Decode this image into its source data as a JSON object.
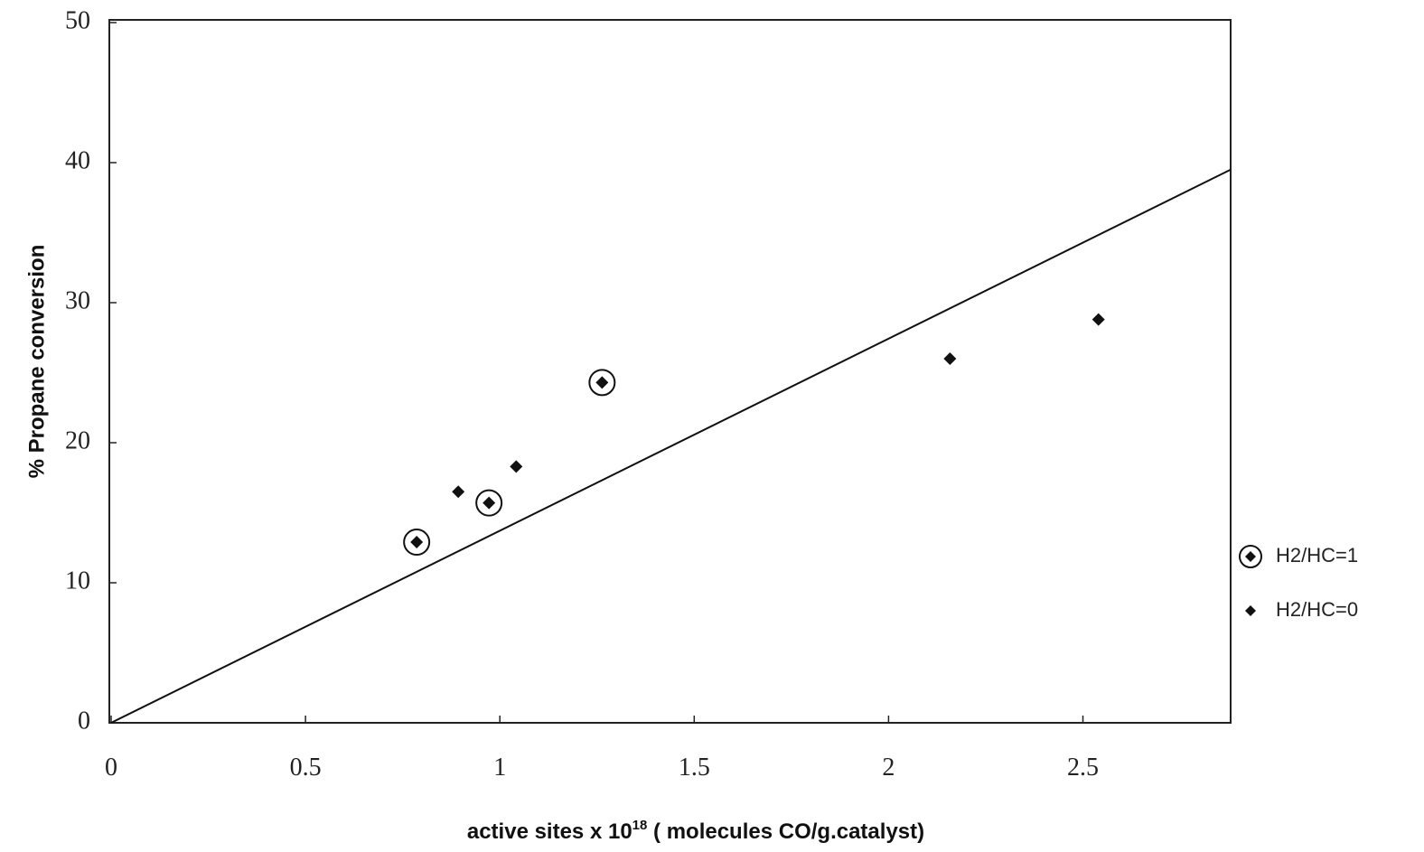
{
  "chart_data": {
    "type": "scatter",
    "ylabel": "% Propane conversion",
    "xlabel": {
      "text": "active sites x 10",
      "sup": "18",
      "rest": " ( molecules CO/g.catalyst)"
    },
    "xlim": [
      0,
      2.88
    ],
    "ylim": [
      0,
      50
    ],
    "xticks": [
      0,
      0.5,
      1,
      1.5,
      2,
      2.5
    ],
    "yticks": [
      0,
      10,
      20,
      30,
      40,
      50
    ],
    "series": [
      {
        "name": "H2/HC=1",
        "color": "#111111",
        "circled": true,
        "x": [
          0.786,
          0.972,
          1.263
        ],
        "values": [
          12.9,
          15.7,
          24.3
        ]
      },
      {
        "name": "H2/HC=0",
        "color": "#111111",
        "circled": false,
        "x": [
          0.893,
          1.042,
          2.158,
          2.54
        ],
        "values": [
          16.5,
          18.3,
          26.0,
          28.8
        ]
      }
    ],
    "trendline": {
      "x": [
        0,
        2.88
      ],
      "values": [
        0,
        39.5
      ]
    }
  }
}
